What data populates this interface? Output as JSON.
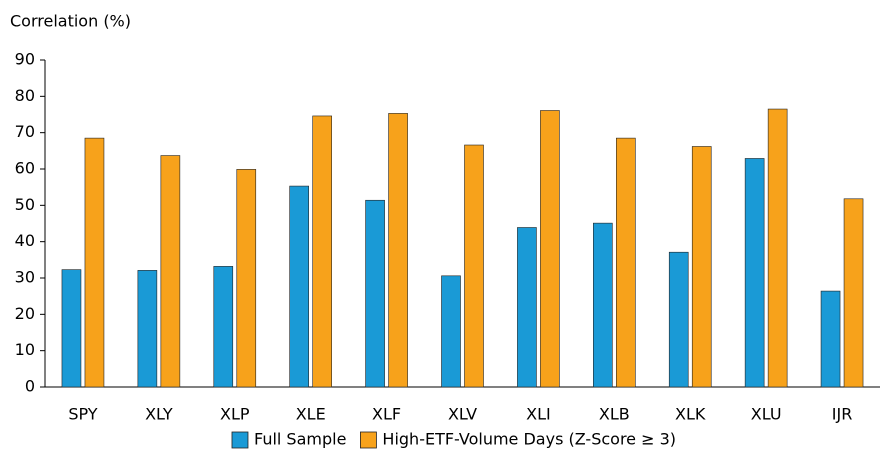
{
  "chart_data": {
    "type": "bar",
    "y_label": "Correlation (%)",
    "categories": [
      "SPY",
      "XLY",
      "XLP",
      "XLE",
      "XLF",
      "XLV",
      "XLI",
      "XLB",
      "XLK",
      "XLU",
      "IJR"
    ],
    "series": [
      {
        "name": "Full Sample",
        "color": "#1a9ad6",
        "values": [
          32.3,
          32.1,
          33.2,
          55.3,
          51.4,
          30.6,
          43.9,
          45.1,
          37.1,
          62.9,
          26.4
        ]
      },
      {
        "name": "High-ETF-Volume Days (Z-Score ≥ 3)",
        "color": "#f7a21b",
        "values": [
          68.5,
          63.7,
          59.9,
          74.6,
          75.3,
          66.6,
          76.1,
          68.5,
          66.2,
          76.5,
          51.8
        ]
      }
    ],
    "ylim": [
      0,
      90
    ],
    "yticks": [
      0,
      10,
      20,
      30,
      40,
      50,
      60,
      70,
      80,
      90
    ],
    "legend": "bottom"
  }
}
